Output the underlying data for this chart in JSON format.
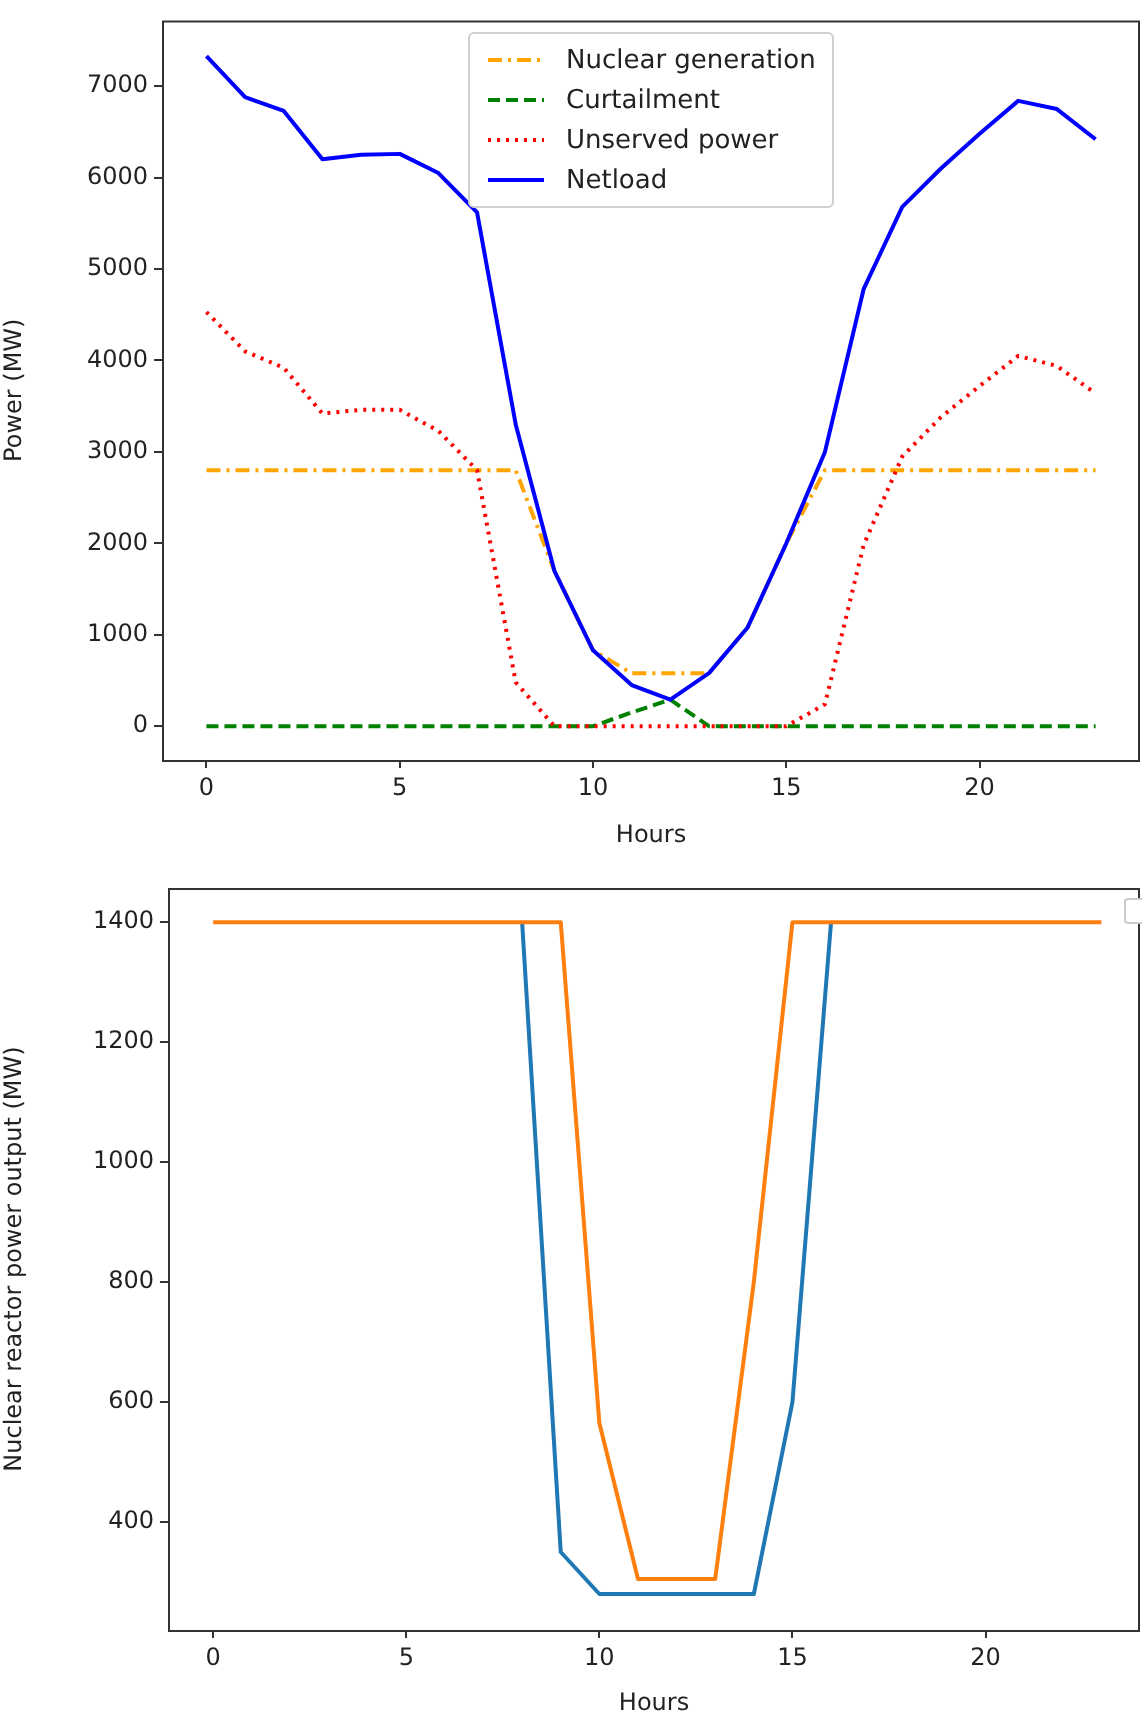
{
  "chart_data": [
    {
      "type": "line",
      "xlabel": "Hours",
      "ylabel": "Power (MW)",
      "x": [
        0,
        1,
        2,
        3,
        4,
        5,
        6,
        7,
        8,
        9,
        10,
        11,
        12,
        13,
        14,
        15,
        16,
        17,
        18,
        19,
        20,
        21,
        22,
        23
      ],
      "series": [
        {
          "name": "Nuclear generation",
          "color": "#ffa500",
          "line_style": "dashdot",
          "values": [
            2800,
            2800,
            2800,
            2800,
            2800,
            2800,
            2800,
            2800,
            2800,
            1700,
            830,
            580,
            580,
            580,
            1080,
            2000,
            2800,
            2800,
            2800,
            2800,
            2800,
            2800,
            2800,
            2800
          ]
        },
        {
          "name": "Curtailment",
          "color": "#008000",
          "line_style": "dashed",
          "values": [
            0,
            0,
            0,
            0,
            0,
            0,
            0,
            0,
            0,
            0,
            0,
            150,
            290,
            0,
            0,
            0,
            0,
            0,
            0,
            0,
            0,
            0,
            0,
            0
          ]
        },
        {
          "name": "Unserved power",
          "color": "#ff0000",
          "line_style": "dotted",
          "values": [
            4530,
            4100,
            3920,
            3420,
            3460,
            3460,
            3230,
            2800,
            480,
            0,
            0,
            0,
            0,
            0,
            0,
            0,
            240,
            1980,
            2950,
            3380,
            3720,
            4050,
            3940,
            3640
          ]
        },
        {
          "name": "Netload",
          "color": "#0000ff",
          "line_style": "solid",
          "values": [
            7330,
            6880,
            6730,
            6200,
            6250,
            6260,
            6050,
            5620,
            3300,
            1700,
            830,
            450,
            290,
            580,
            1080,
            2000,
            3000,
            4780,
            5680,
            6100,
            6480,
            6840,
            6750,
            6420
          ]
        }
      ],
      "xlim": [
        -1.15,
        24.15
      ],
      "xticks": [
        0,
        5,
        10,
        15,
        20
      ],
      "ylim": [
        -370,
        7720
      ],
      "yticks": [
        0,
        1000,
        2000,
        3000,
        4000,
        5000,
        6000,
        7000
      ],
      "grid": false,
      "legend": "top",
      "marker": "none"
    },
    {
      "type": "line",
      "xlabel": "Hours",
      "ylabel": "Nuclear reactor power output (MW)",
      "x": [
        0,
        1,
        2,
        3,
        4,
        5,
        6,
        7,
        8,
        9,
        10,
        11,
        12,
        13,
        14,
        15,
        16,
        17,
        18,
        19,
        20,
        21,
        22,
        23
      ],
      "series": [
        {
          "color": "#1f77b4",
          "values": [
            null,
            null,
            null,
            null,
            null,
            null,
            null,
            null,
            1400,
            350,
            280,
            280,
            280,
            280,
            280,
            600,
            1400,
            null,
            null,
            null,
            null,
            null,
            null,
            null
          ]
        },
        {
          "color": "#ff7f0e",
          "values": [
            1400,
            1400,
            1400,
            1400,
            1400,
            1400,
            1400,
            1400,
            1400,
            1400,
            565,
            305,
            305,
            305,
            800,
            1400,
            1400,
            1400,
            1400,
            1400,
            1400,
            1400,
            1400,
            1400
          ]
        }
      ],
      "xlim": [
        -1.17,
        24.0
      ],
      "xticks": [
        0,
        5,
        10,
        15,
        20
      ],
      "ylim": [
        220,
        1457
      ],
      "yticks": [
        400,
        600,
        800,
        1000,
        1200,
        1400
      ],
      "grid": false,
      "legend": false,
      "marker": "none"
    }
  ]
}
